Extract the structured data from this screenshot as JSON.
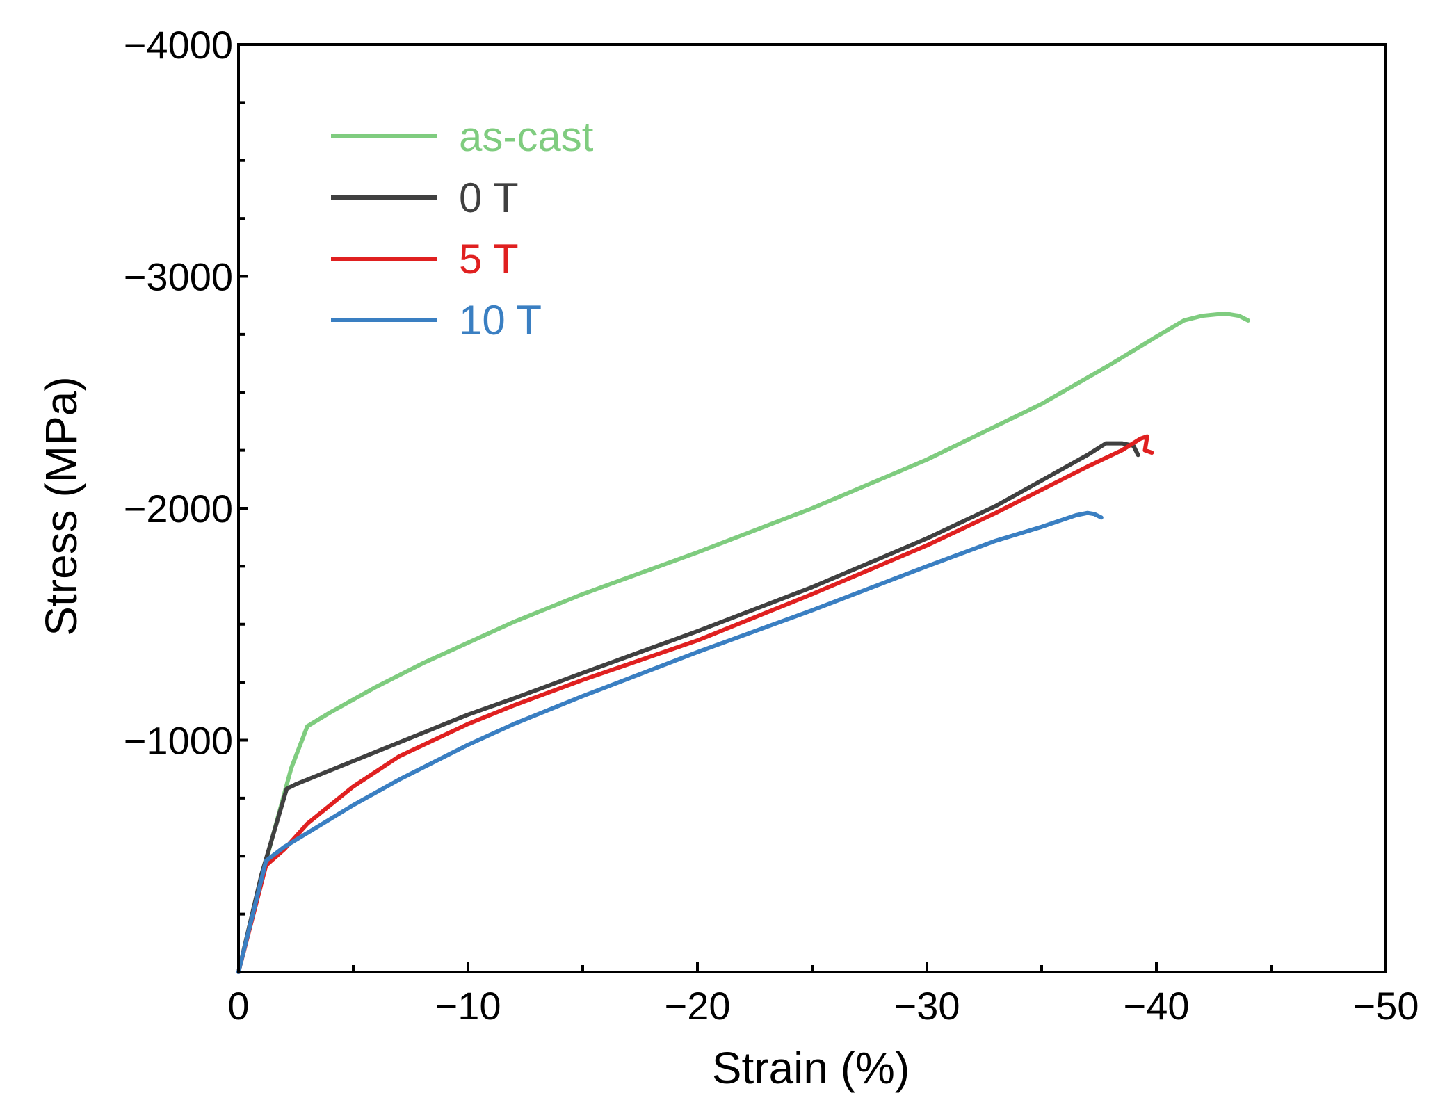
{
  "chart_data": {
    "type": "line",
    "title": "",
    "xlabel": "Strain (%)",
    "ylabel": "Stress (MPa)",
    "xlim": [
      0,
      -50
    ],
    "ylim": [
      0,
      -4000
    ],
    "x_ticks": [
      0,
      -10,
      -20,
      -30,
      -40,
      -50
    ],
    "x_tick_labels": [
      "0",
      "−10",
      "−20",
      "−30",
      "−40",
      "−50"
    ],
    "y_ticks": [
      -1000,
      -2000,
      -3000,
      -4000
    ],
    "y_tick_labels": [
      "−1000",
      "−2000",
      "−3000",
      "−4000"
    ],
    "x_minor_step": -5,
    "y_minor_step": -250,
    "grid": false,
    "legend_position": "top-left",
    "series": [
      {
        "name": "as-cast",
        "color": "#7fcc7f",
        "points": [
          [
            0,
            0
          ],
          [
            -1.2,
            -480
          ],
          [
            -2.3,
            -880
          ],
          [
            -3,
            -1060
          ],
          [
            -4,
            -1120
          ],
          [
            -6,
            -1230
          ],
          [
            -8,
            -1330
          ],
          [
            -10,
            -1420
          ],
          [
            -12,
            -1510
          ],
          [
            -15,
            -1630
          ],
          [
            -20,
            -1810
          ],
          [
            -25,
            -2000
          ],
          [
            -30,
            -2210
          ],
          [
            -35,
            -2450
          ],
          [
            -38,
            -2620
          ],
          [
            -40,
            -2740
          ],
          [
            -41.2,
            -2810
          ],
          [
            -42,
            -2830
          ],
          [
            -43,
            -2840
          ],
          [
            -43.6,
            -2830
          ],
          [
            -44,
            -2810
          ]
        ]
      },
      {
        "name": "0 T",
        "color": "#404040",
        "points": [
          [
            0,
            0
          ],
          [
            -1,
            -420
          ],
          [
            -2.1,
            -790
          ],
          [
            -2.5,
            -810
          ],
          [
            -4,
            -870
          ],
          [
            -6,
            -950
          ],
          [
            -8,
            -1030
          ],
          [
            -10,
            -1110
          ],
          [
            -12,
            -1180
          ],
          [
            -15,
            -1290
          ],
          [
            -20,
            -1470
          ],
          [
            -25,
            -1660
          ],
          [
            -30,
            -1870
          ],
          [
            -33,
            -2010
          ],
          [
            -35,
            -2120
          ],
          [
            -37,
            -2230
          ],
          [
            -37.8,
            -2280
          ],
          [
            -38.5,
            -2280
          ],
          [
            -39,
            -2270
          ],
          [
            -39.2,
            -2230
          ]
        ]
      },
      {
        "name": "5 T",
        "color": "#e02020",
        "points": [
          [
            0,
            0
          ],
          [
            -1.2,
            -460
          ],
          [
            -2,
            -530
          ],
          [
            -3,
            -640
          ],
          [
            -5,
            -800
          ],
          [
            -7,
            -930
          ],
          [
            -10,
            -1070
          ],
          [
            -12,
            -1150
          ],
          [
            -15,
            -1260
          ],
          [
            -20,
            -1430
          ],
          [
            -25,
            -1630
          ],
          [
            -30,
            -1840
          ],
          [
            -33,
            -1980
          ],
          [
            -35,
            -2080
          ],
          [
            -37,
            -2180
          ],
          [
            -38.5,
            -2250
          ],
          [
            -39.3,
            -2300
          ],
          [
            -39.6,
            -2310
          ],
          [
            -39.5,
            -2250
          ],
          [
            -39.8,
            -2240
          ]
        ]
      },
      {
        "name": "10 T",
        "color": "#3a7fc2",
        "points": [
          [
            0,
            0
          ],
          [
            -1.2,
            -480
          ],
          [
            -2,
            -540
          ],
          [
            -3,
            -600
          ],
          [
            -5,
            -720
          ],
          [
            -7,
            -830
          ],
          [
            -10,
            -980
          ],
          [
            -12,
            -1070
          ],
          [
            -15,
            -1190
          ],
          [
            -20,
            -1380
          ],
          [
            -25,
            -1560
          ],
          [
            -30,
            -1750
          ],
          [
            -33,
            -1860
          ],
          [
            -35,
            -1920
          ],
          [
            -36.5,
            -1970
          ],
          [
            -37,
            -1980
          ],
          [
            -37.3,
            -1975
          ],
          [
            -37.6,
            -1960
          ]
        ]
      }
    ]
  }
}
